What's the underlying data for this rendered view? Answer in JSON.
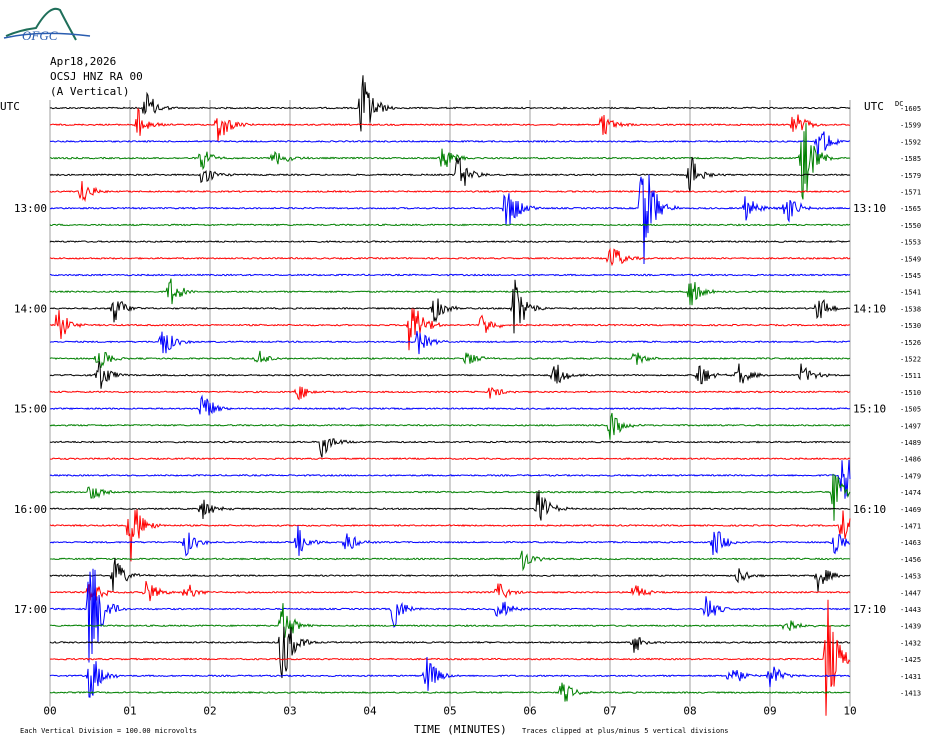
{
  "header": {
    "logo_text": "OFGC",
    "date": "Apr18,2026",
    "station": "OCSJ HNZ RA 00",
    "component": "(A Vertical)",
    "tz_left": "UTC",
    "tz_right": "UTC"
  },
  "footer": {
    "x_axis_title": "TIME (MINUTES)",
    "scale_note": "Each Vertical Division = 100.00 microvolts",
    "clip_note": "Traces clipped at plus/minus 5 vertical divisions"
  },
  "chart_data": {
    "type": "helicorder",
    "title": "",
    "xlabel": "TIME (MINUTES)",
    "x_ticks": [
      "00",
      "01",
      "02",
      "03",
      "04",
      "05",
      "06",
      "07",
      "08",
      "09",
      "10"
    ],
    "xlim": [
      0,
      10
    ],
    "grid": true,
    "trace_colors": [
      "#000000",
      "#ff0000",
      "#0000ff",
      "#008000"
    ],
    "row_count": 36,
    "left_time_labels": [
      {
        "row": 6,
        "label": "13:00"
      },
      {
        "row": 12,
        "label": "14:00"
      },
      {
        "row": 18,
        "label": "15:00"
      },
      {
        "row": 24,
        "label": "16:00"
      },
      {
        "row": 30,
        "label": "17:00"
      }
    ],
    "right_time_labels": [
      {
        "row": 6,
        "label": "13:10"
      },
      {
        "row": 12,
        "label": "14:10"
      },
      {
        "row": 18,
        "label": "15:10"
      },
      {
        "row": 24,
        "label": "16:10"
      },
      {
        "row": 30,
        "label": "17:10"
      }
    ],
    "right_values": [
      "-1605",
      "-1599",
      "-1592",
      "-1585",
      "-1579",
      "-1571",
      "-1565",
      "-1550",
      "-1553",
      "-1549",
      "-1545",
      "-1541",
      "-1538",
      "-1530",
      "-1526",
      "-1522",
      "-1511",
      "-1510",
      "-1505",
      "-1497",
      "-1489",
      "-1486",
      "-1479",
      "-1474",
      "-1469",
      "-1471",
      "-1463",
      "-1456",
      "-1453",
      "-1447",
      "-1443",
      "-1439",
      "-1432",
      "-1425",
      "-1431",
      "-1413"
    ],
    "right_top_tag": "DC",
    "events": [
      {
        "row": 0,
        "minute": 1.2,
        "amp": 1.2
      },
      {
        "row": 0,
        "minute": 3.9,
        "amp": 2.6
      },
      {
        "row": 1,
        "minute": 1.1,
        "amp": 1.0
      },
      {
        "row": 1,
        "minute": 2.1,
        "amp": 1.3
      },
      {
        "row": 1,
        "minute": 6.9,
        "amp": 0.9
      },
      {
        "row": 1,
        "minute": 9.3,
        "amp": 1.1
      },
      {
        "row": 2,
        "minute": 9.6,
        "amp": 1.3
      },
      {
        "row": 3,
        "minute": 1.9,
        "amp": 0.8
      },
      {
        "row": 3,
        "minute": 2.8,
        "amp": 1.0
      },
      {
        "row": 3,
        "minute": 4.9,
        "amp": 1.1
      },
      {
        "row": 3,
        "minute": 9.4,
        "amp": 3.5
      },
      {
        "row": 4,
        "minute": 1.9,
        "amp": 1.0
      },
      {
        "row": 4,
        "minute": 5.1,
        "amp": 1.4
      },
      {
        "row": 4,
        "minute": 8.0,
        "amp": 1.4
      },
      {
        "row": 5,
        "minute": 0.4,
        "amp": 0.9
      },
      {
        "row": 6,
        "minute": 5.7,
        "amp": 1.8
      },
      {
        "row": 6,
        "minute": 7.4,
        "amp": 4.5
      },
      {
        "row": 6,
        "minute": 8.7,
        "amp": 1.0
      },
      {
        "row": 6,
        "minute": 9.2,
        "amp": 1.2
      },
      {
        "row": 9,
        "minute": 7.0,
        "amp": 1.2
      },
      {
        "row": 11,
        "minute": 1.5,
        "amp": 1.0
      },
      {
        "row": 11,
        "minute": 8.0,
        "amp": 1.1
      },
      {
        "row": 12,
        "minute": 0.8,
        "amp": 1.0
      },
      {
        "row": 12,
        "minute": 4.8,
        "amp": 1.0
      },
      {
        "row": 12,
        "minute": 5.8,
        "amp": 2.2
      },
      {
        "row": 12,
        "minute": 9.6,
        "amp": 1.0
      },
      {
        "row": 13,
        "minute": 0.1,
        "amp": 1.2
      },
      {
        "row": 13,
        "minute": 4.5,
        "amp": 2.6
      },
      {
        "row": 13,
        "minute": 5.4,
        "amp": 0.9
      },
      {
        "row": 14,
        "minute": 1.4,
        "amp": 1.2
      },
      {
        "row": 14,
        "minute": 4.6,
        "amp": 0.9
      },
      {
        "row": 15,
        "minute": 0.6,
        "amp": 0.9
      },
      {
        "row": 15,
        "minute": 2.6,
        "amp": 0.6
      },
      {
        "row": 15,
        "minute": 5.2,
        "amp": 0.6
      },
      {
        "row": 15,
        "minute": 7.3,
        "amp": 0.6
      },
      {
        "row": 16,
        "minute": 0.6,
        "amp": 1.3
      },
      {
        "row": 16,
        "minute": 6.3,
        "amp": 1.0
      },
      {
        "row": 16,
        "minute": 8.1,
        "amp": 1.0
      },
      {
        "row": 16,
        "minute": 8.6,
        "amp": 0.9
      },
      {
        "row": 16,
        "minute": 9.4,
        "amp": 0.9
      },
      {
        "row": 17,
        "minute": 3.1,
        "amp": 0.6
      },
      {
        "row": 17,
        "minute": 5.5,
        "amp": 0.5
      },
      {
        "row": 18,
        "minute": 1.9,
        "amp": 1.2
      },
      {
        "row": 19,
        "minute": 7.0,
        "amp": 1.1
      },
      {
        "row": 20,
        "minute": 3.4,
        "amp": 1.0
      },
      {
        "row": 22,
        "minute": 9.9,
        "amp": 2.2
      },
      {
        "row": 23,
        "minute": 0.5,
        "amp": 0.8
      },
      {
        "row": 23,
        "minute": 9.8,
        "amp": 2.0
      },
      {
        "row": 24,
        "minute": 1.9,
        "amp": 0.9
      },
      {
        "row": 24,
        "minute": 6.1,
        "amp": 1.4
      },
      {
        "row": 25,
        "minute": 1.0,
        "amp": 2.4
      },
      {
        "row": 25,
        "minute": 9.9,
        "amp": 1.2
      },
      {
        "row": 26,
        "minute": 1.7,
        "amp": 0.9
      },
      {
        "row": 26,
        "minute": 3.1,
        "amp": 1.0
      },
      {
        "row": 26,
        "minute": 3.7,
        "amp": 0.8
      },
      {
        "row": 26,
        "minute": 8.3,
        "amp": 1.2
      },
      {
        "row": 26,
        "minute": 9.8,
        "amp": 0.9
      },
      {
        "row": 27,
        "minute": 5.9,
        "amp": 0.8
      },
      {
        "row": 28,
        "minute": 0.8,
        "amp": 1.3
      },
      {
        "row": 28,
        "minute": 8.6,
        "amp": 0.6
      },
      {
        "row": 28,
        "minute": 9.6,
        "amp": 1.0
      },
      {
        "row": 29,
        "minute": 0.5,
        "amp": 1.0
      },
      {
        "row": 29,
        "minute": 1.2,
        "amp": 0.9
      },
      {
        "row": 29,
        "minute": 1.7,
        "amp": 0.7
      },
      {
        "row": 29,
        "minute": 5.6,
        "amp": 0.7
      },
      {
        "row": 29,
        "minute": 7.3,
        "amp": 0.7
      },
      {
        "row": 30,
        "minute": 0.5,
        "amp": 5.0
      },
      {
        "row": 30,
        "minute": 4.3,
        "amp": 1.2
      },
      {
        "row": 30,
        "minute": 5.6,
        "amp": 1.0
      },
      {
        "row": 30,
        "minute": 8.2,
        "amp": 1.0
      },
      {
        "row": 31,
        "minute": 2.9,
        "amp": 1.6
      },
      {
        "row": 31,
        "minute": 9.2,
        "amp": 0.8
      },
      {
        "row": 32,
        "minute": 2.9,
        "amp": 2.8
      },
      {
        "row": 32,
        "minute": 7.3,
        "amp": 0.8
      },
      {
        "row": 33,
        "minute": 9.7,
        "amp": 4.5
      },
      {
        "row": 34,
        "minute": 0.5,
        "amp": 1.8
      },
      {
        "row": 34,
        "minute": 4.7,
        "amp": 1.4
      },
      {
        "row": 34,
        "minute": 8.5,
        "amp": 1.0
      },
      {
        "row": 34,
        "minute": 9.0,
        "amp": 1.0
      },
      {
        "row": 35,
        "minute": 6.4,
        "amp": 0.9
      }
    ]
  }
}
